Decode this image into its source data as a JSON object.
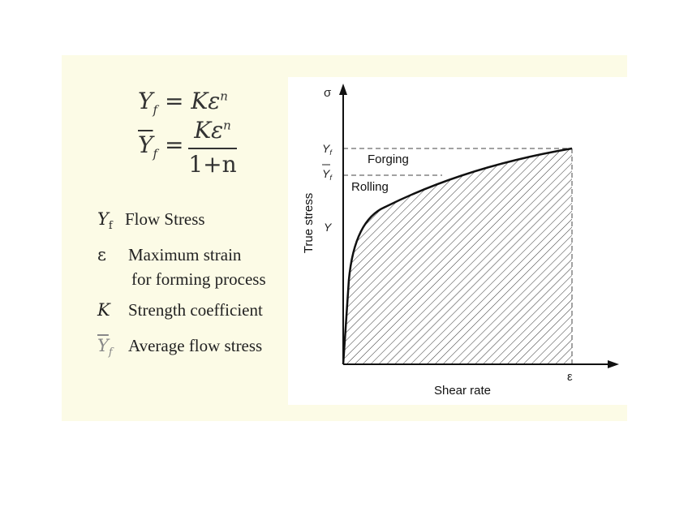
{
  "formulas": {
    "flow_stress": {
      "lhs": "Y",
      "lhs_sub": "f",
      "eq": "=",
      "rhs": "Kε",
      "rhs_sup": "n"
    },
    "avg_flow_stress": {
      "lhs": "Y",
      "lhs_sub": "f",
      "eq": "=",
      "numerator": "Kε",
      "numerator_sup": "n",
      "denominator": "1+n"
    }
  },
  "legend": [
    {
      "symbol": "Y",
      "symbol_sub": "f",
      "text": "Flow Stress"
    },
    {
      "symbol": "ε",
      "text": "Maximum strain",
      "text2": "for forming process"
    },
    {
      "symbol": "K",
      "text": "Strength coefficient"
    },
    {
      "symbol": "Y",
      "symbol_sub": "f",
      "overline": true,
      "text": "Average flow stress"
    }
  ],
  "graph": {
    "y_axis_symbol": "σ",
    "x_axis_symbol": "ε",
    "ylabel": "True stress",
    "xlabel": "Shear rate",
    "tick_y": "Y",
    "tick_yf": "Y",
    "tick_yf_sub": "f",
    "tick_yf_bar": "Y",
    "tick_yf_bar_sub": "f",
    "region_labels": {
      "forging": "Forging",
      "rolling": "Rolling"
    }
  }
}
